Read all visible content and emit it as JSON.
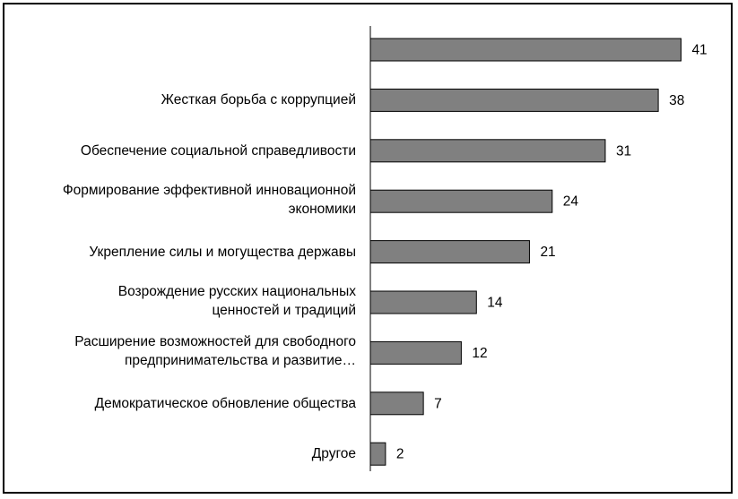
{
  "chart_data": {
    "type": "bar",
    "orientation": "horizontal",
    "title": "",
    "categories": [
      "",
      "Жесткая борьба с коррупцией",
      "Обеспечение социальной справедливости",
      "Формирование эффективной инновационной\nэкономики",
      "Укрепление силы и могущества державы",
      "Возрождение русских национальных\nценностей и традиций",
      "Расширение возможностей для свободного\nпредпринимательства и развитие…",
      "Демократическое обновление общества",
      "Другое"
    ],
    "values": [
      41,
      38,
      31,
      24,
      21,
      14,
      12,
      7,
      2
    ],
    "xlim": [
      0,
      42
    ],
    "grid": false,
    "legend": "none",
    "colors": {
      "bar": "#808080",
      "border": "#000000"
    }
  }
}
